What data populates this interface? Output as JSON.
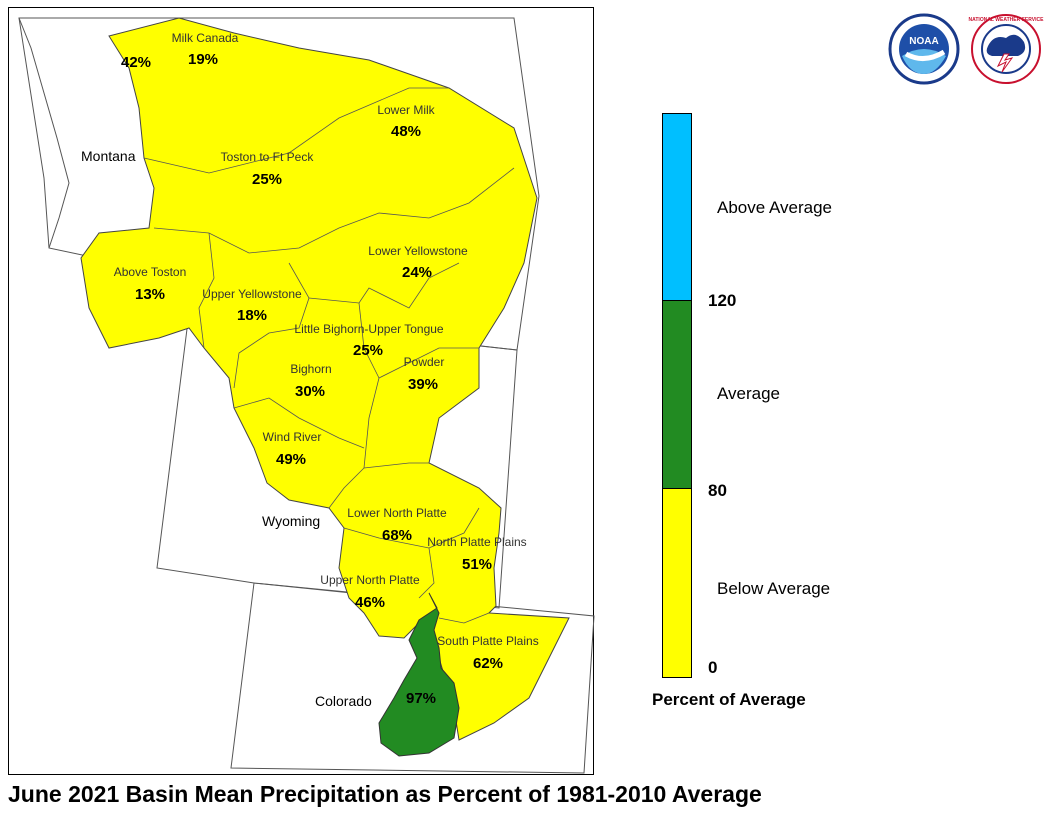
{
  "title": "June 2021 Basin Mean Precipitation as Percent of 1981-2010 Average",
  "legend": {
    "title": "Percent of Average",
    "ticks": [
      "0",
      "80",
      "120"
    ],
    "categories": [
      {
        "label": "Above Average",
        "color": "#00BFFF"
      },
      {
        "label": "Average",
        "color": "#228B22"
      },
      {
        "label": "Below Average",
        "color": "#FFFF00"
      }
    ]
  },
  "states": [
    "Montana",
    "Wyoming",
    "Colorado"
  ],
  "basins": [
    {
      "name": "",
      "pct": "42%",
      "category": "Below Average"
    },
    {
      "name": "Milk Canada",
      "pct": "19%",
      "category": "Below Average"
    },
    {
      "name": "Lower Milk",
      "pct": "48%",
      "category": "Below Average"
    },
    {
      "name": "Toston to Ft Peck",
      "pct": "25%",
      "category": "Below Average"
    },
    {
      "name": "Lower Yellowstone",
      "pct": "24%",
      "category": "Below Average"
    },
    {
      "name": "Above Toston",
      "pct": "13%",
      "category": "Below Average"
    },
    {
      "name": "Upper Yellowstone",
      "pct": "18%",
      "category": "Below Average"
    },
    {
      "name": "Little Bighorn-Upper Tongue",
      "pct": "25%",
      "category": "Below Average"
    },
    {
      "name": "Bighorn",
      "pct": "30%",
      "category": "Below Average"
    },
    {
      "name": "Powder",
      "pct": "39%",
      "category": "Below Average"
    },
    {
      "name": "Wind River",
      "pct": "49%",
      "category": "Below Average"
    },
    {
      "name": "Lower North Platte",
      "pct": "68%",
      "category": "Below Average"
    },
    {
      "name": "North Platte Plains",
      "pct": "51%",
      "category": "Below Average"
    },
    {
      "name": "Upper North Platte",
      "pct": "46%",
      "category": "Below Average"
    },
    {
      "name": "South Platte Plains",
      "pct": "62%",
      "category": "Below Average"
    },
    {
      "name": "",
      "pct": "97%",
      "category": "Average"
    }
  ],
  "logos": [
    "noaa-logo",
    "national-weather-service-logo"
  ],
  "logo_text": {
    "noaa": "NOAA",
    "nws": "NATIONAL WEATHER SERVICE"
  }
}
